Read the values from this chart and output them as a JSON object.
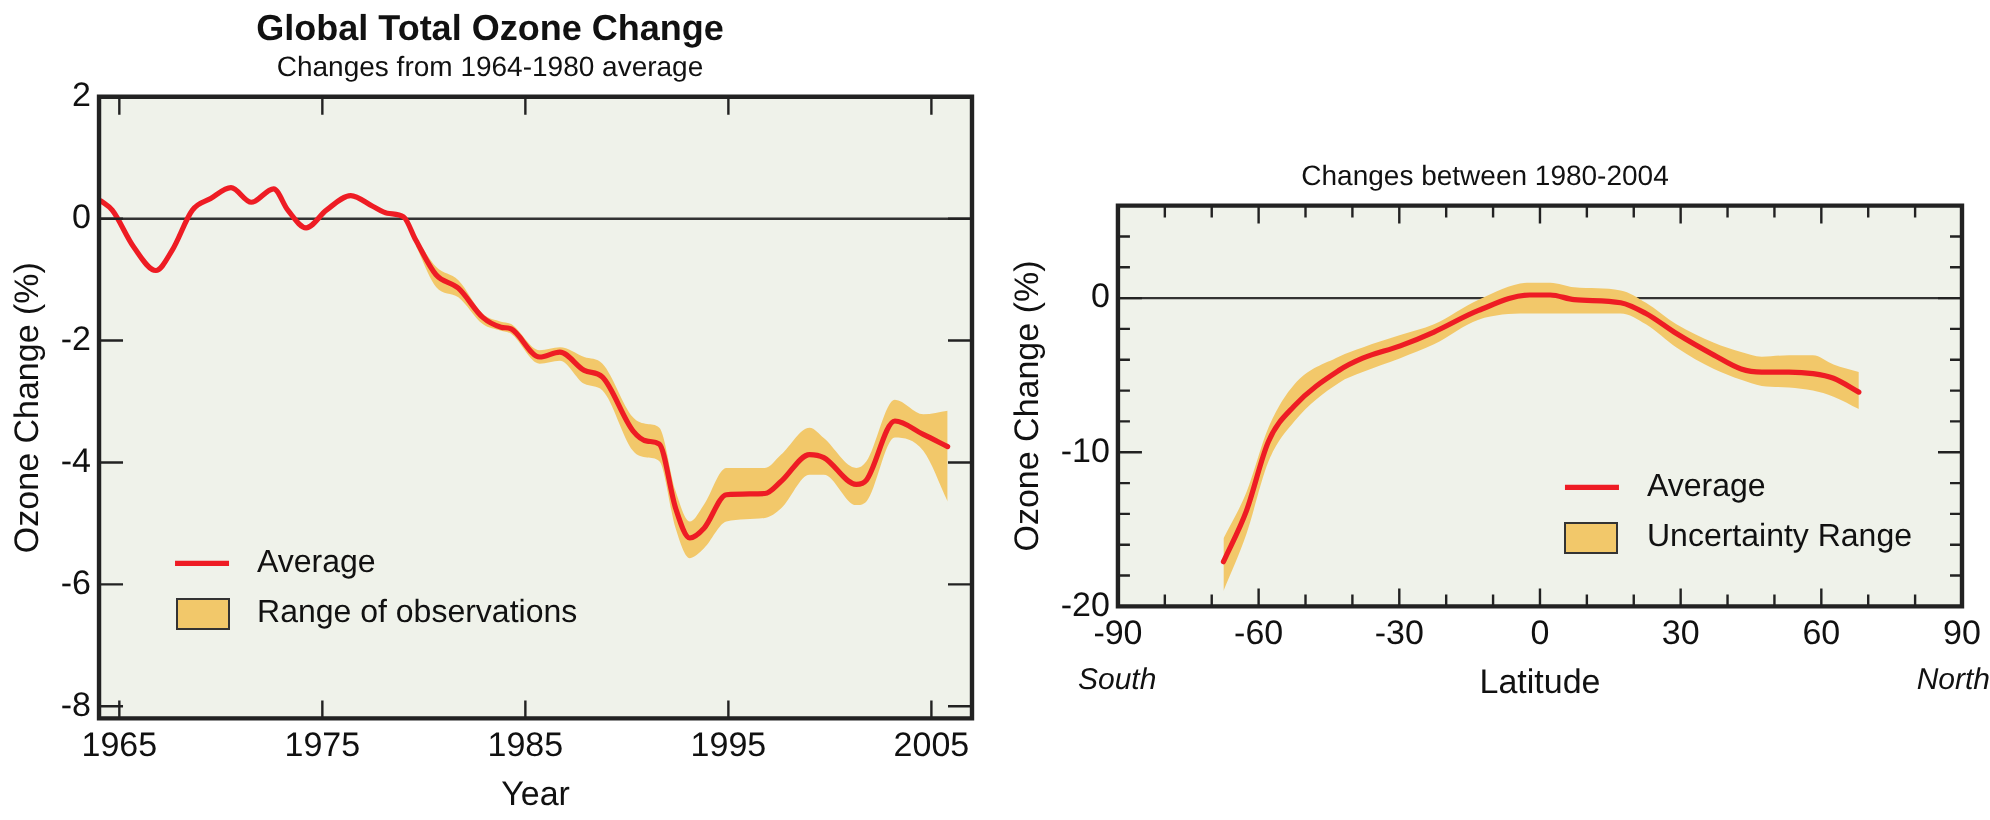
{
  "chart_data": [
    {
      "type": "line",
      "title": "Global Total Ozone Change",
      "subtitle": "Changes from 1964-1980 average",
      "xlabel": "Year",
      "ylabel": "Ozone Change (%)",
      "xlim": [
        1964,
        2007
      ],
      "xticks": [
        1965,
        1975,
        1985,
        1995,
        2005
      ],
      "ylim": [
        -8.2,
        2
      ],
      "yticks": [
        2,
        0,
        -2,
        -4,
        -6,
        -8
      ],
      "grid": false,
      "legend": "bottom left",
      "marker": "none",
      "line_style": "solid",
      "ref_lines": [
        {
          "axis": "y",
          "value": 0,
          "color": "#333333"
        }
      ],
      "annotations": [
        "Range of observations"
      ],
      "series": [
        {
          "name": "Average",
          "color": "#ee1c24",
          "x": [
            1964.1,
            1964.65,
            1965.7,
            1966.8,
            1967.6,
            1968.6,
            1969.5,
            1970.5,
            1971.5,
            1972.6,
            1973.3,
            1974.2,
            1975.2,
            1976.4,
            1977.5,
            1978.2,
            1979.0,
            1979.6,
            1980.6,
            1981.7,
            1982.9,
            1983.8,
            1984.3,
            1985.7,
            1986.7,
            1987.9,
            1988.8,
            1990.3,
            1991.0,
            1991.6,
            1992.4,
            1993.1,
            1993.8,
            1994.9,
            1996.8,
            1997.6,
            1999.0,
            1999.7,
            2001.3,
            2001.8,
            2003.2,
            2004.6,
            2005.8
          ],
          "values": [
            0.29,
            0.14,
            -0.46,
            -0.85,
            -0.52,
            0.14,
            0.33,
            0.51,
            0.27,
            0.49,
            0.14,
            -0.15,
            0.14,
            0.38,
            0.2,
            0.09,
            0.03,
            -0.35,
            -0.92,
            -1.14,
            -1.62,
            -1.78,
            -1.81,
            -2.27,
            -2.19,
            -2.49,
            -2.6,
            -3.48,
            -3.65,
            -3.7,
            -4.75,
            -5.24,
            -5.08,
            -4.53,
            -4.51,
            -4.31,
            -3.87,
            -3.92,
            -4.36,
            -4.29,
            -3.32,
            -3.54,
            -3.74
          ],
          "upper": [
            null,
            null,
            null,
            null,
            null,
            null,
            null,
            null,
            null,
            null,
            null,
            null,
            null,
            null,
            null,
            null,
            null,
            -0.3,
            -0.79,
            -1.01,
            -1.56,
            -1.69,
            -1.73,
            -2.16,
            -2.11,
            -2.27,
            -2.38,
            -3.26,
            -3.37,
            -3.43,
            -4.47,
            -4.97,
            -4.69,
            -4.09,
            -4.09,
            -3.87,
            -3.43,
            -3.6,
            -4.09,
            -3.98,
            -2.97,
            -3.21,
            -3.15
          ],
          "lower": [
            null,
            null,
            null,
            null,
            null,
            null,
            null,
            null,
            null,
            null,
            null,
            null,
            null,
            null,
            null,
            null,
            null,
            -0.44,
            -1.12,
            -1.29,
            -1.73,
            -1.84,
            -1.89,
            -2.38,
            -2.33,
            -2.71,
            -2.82,
            -3.81,
            -3.92,
            -3.98,
            -5.08,
            -5.57,
            -5.41,
            -4.97,
            -4.91,
            -4.75,
            -4.2,
            -4.2,
            -4.7,
            -4.64,
            -3.59,
            -3.81,
            -4.64
          ]
        }
      ]
    },
    {
      "type": "line",
      "title": "Changes between 1980-2004",
      "xlabel": "Latitude",
      "ylabel": "Ozone Change (%)",
      "xlim": [
        -90,
        90
      ],
      "xticks": [
        -90,
        {
          "value": -80,
          "label": null
        },
        {
          "value": -70,
          "label": null
        },
        -60,
        {
          "value": -50,
          "label": null
        },
        {
          "value": -40,
          "label": null
        },
        -30,
        {
          "value": -20,
          "label": null
        },
        {
          "value": -10,
          "label": null
        },
        0,
        {
          "value": 10,
          "label": null
        },
        {
          "value": 20,
          "label": null
        },
        30,
        {
          "value": 40,
          "label": null
        },
        {
          "value": 50,
          "label": null
        },
        60,
        {
          "value": 70,
          "label": null
        },
        {
          "value": 80,
          "label": null
        },
        90
      ],
      "ylim": [
        -20,
        6
      ],
      "yticks": [
        -20,
        {
          "value": -18,
          "label": null
        },
        {
          "value": -16,
          "label": null
        },
        {
          "value": -14,
          "label": null
        },
        {
          "value": -12,
          "label": null
        },
        -10,
        {
          "value": -8,
          "label": null
        },
        {
          "value": -6,
          "label": null
        },
        {
          "value": -4,
          "label": null
        },
        {
          "value": -2,
          "label": null
        },
        0,
        {
          "value": 2,
          "label": null
        },
        {
          "value": 4,
          "label": null
        }
      ],
      "grid": false,
      "legend": "bottom right",
      "marker": "none",
      "line_style": "solid",
      "ref_lines": [
        {
          "axis": "y",
          "value": 0,
          "color": "#333333"
        }
      ],
      "annotations": [
        "South",
        "North",
        "Uncertainty Range"
      ],
      "series": [
        {
          "name": "Average",
          "color": "#ee1c24",
          "x": [
            -67.5,
            -62.6,
            -57.9,
            -52.4,
            -42.9,
            -37.8,
            -29.8,
            -22.6,
            -13.1,
            -2.2,
            2.2,
            7.3,
            17.2,
            22.6,
            29.1,
            37.1,
            42.9,
            47.3,
            53.1,
            58.2,
            62.6,
            68.0
          ],
          "values": [
            -17.1,
            -13.8,
            -9.3,
            -7.0,
            -4.7,
            -3.9,
            -3.1,
            -2.2,
            -0.8,
            0.2,
            0.2,
            -0.1,
            -0.3,
            -1.0,
            -2.3,
            -3.7,
            -4.6,
            -4.8,
            -4.8,
            -4.9,
            -5.2,
            -6.1
          ],
          "upper": [
            -15.6,
            -12.6,
            -8.4,
            -5.6,
            -3.8,
            -3.2,
            -2.4,
            -1.7,
            -0.1,
            1.0,
            1.0,
            0.7,
            0.5,
            -0.3,
            -1.7,
            -2.9,
            -3.5,
            -3.8,
            -3.7,
            -3.7,
            -4.3,
            -4.8
          ],
          "lower": [
            -19.0,
            -15.3,
            -10.6,
            -8.0,
            -5.5,
            -4.8,
            -3.9,
            -3.0,
            -1.4,
            -1.0,
            -1.0,
            -1.0,
            -1.0,
            -1.7,
            -3.2,
            -4.6,
            -5.3,
            -5.7,
            -5.8,
            -6.0,
            -6.4,
            -7.2
          ]
        }
      ]
    }
  ]
}
